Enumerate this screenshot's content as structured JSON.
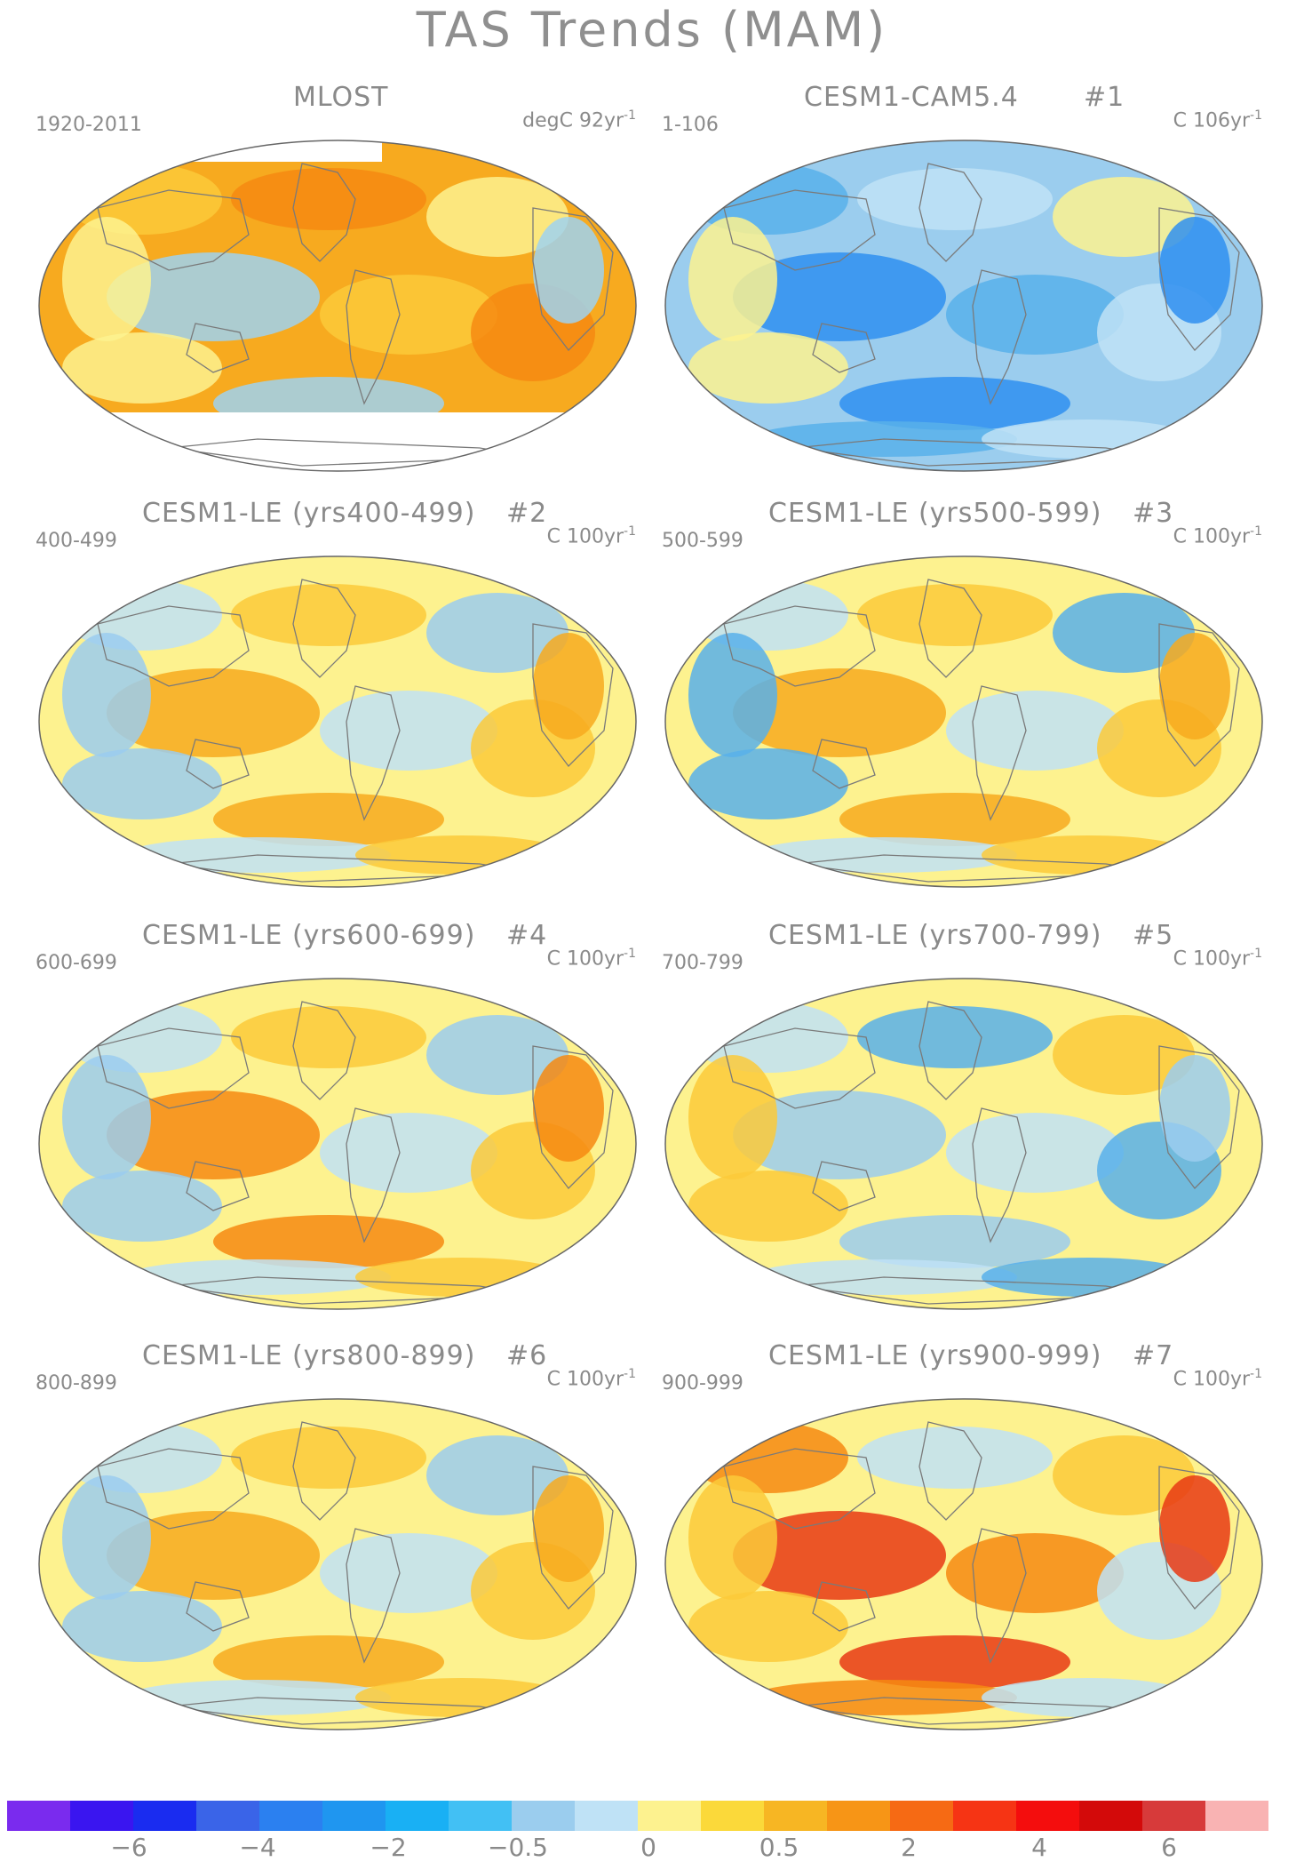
{
  "title": "TAS Trends (MAM)",
  "panels": [
    {
      "title": "MLOST",
      "number": "",
      "period": "1920-2011",
      "units_prefix": "degC 92yr",
      "units_exp": "-1",
      "fill": "#f7aa1f",
      "patches": [
        "#fbca3a",
        "#f68a12",
        "#fdf28f",
        "#9fd2f0"
      ],
      "antarctic_blank": true
    },
    {
      "title": "CESM1-CAM5.4",
      "number": "#1",
      "period": "1-106",
      "units_prefix": "C 106yr",
      "units_exp": "-1",
      "fill": "#9bcdee",
      "patches": [
        "#58b0ea",
        "#bfe2f6",
        "#fdf28f",
        "#2f8ff0"
      ],
      "antarctic_blank": false
    },
    {
      "title": "CESM1-LE (yrs400-499)",
      "number": "#2",
      "period": "400-499",
      "units_prefix": "C 100yr",
      "units_exp": "-1",
      "fill": "#fdf28f",
      "patches": [
        "#bfe2f6",
        "#fbca3a",
        "#9bcdee",
        "#f7aa1f"
      ],
      "antarctic_blank": false
    },
    {
      "title": "CESM1-LE (yrs500-599)",
      "number": "#3",
      "period": "500-599",
      "units_prefix": "C 100yr",
      "units_exp": "-1",
      "fill": "#fdf28f",
      "patches": [
        "#bfe2f6",
        "#fbca3a",
        "#58b0ea",
        "#f7aa1f"
      ],
      "antarctic_blank": false
    },
    {
      "title": "CESM1-LE (yrs600-699)",
      "number": "#4",
      "period": "600-699",
      "units_prefix": "C 100yr",
      "units_exp": "-1",
      "fill": "#fdf28f",
      "patches": [
        "#bfe2f6",
        "#fbca3a",
        "#9bcdee",
        "#f68a12"
      ],
      "antarctic_blank": false
    },
    {
      "title": "CESM1-LE (yrs700-799)",
      "number": "#5",
      "period": "700-799",
      "units_prefix": "C 100yr",
      "units_exp": "-1",
      "fill": "#fdf28f",
      "patches": [
        "#bfe2f6",
        "#58b0ea",
        "#fbca3a",
        "#9bcdee"
      ],
      "antarctic_blank": false
    },
    {
      "title": "CESM1-LE (yrs800-899)",
      "number": "#6",
      "period": "800-899",
      "units_prefix": "C 100yr",
      "units_exp": "-1",
      "fill": "#fdf28f",
      "patches": [
        "#bfe2f6",
        "#fbca3a",
        "#9bcdee",
        "#f7aa1f"
      ],
      "antarctic_blank": false
    },
    {
      "title": "CESM1-LE (yrs900-999)",
      "number": "#7",
      "period": "900-999",
      "units_prefix": "C 100yr",
      "units_exp": "-1",
      "fill": "#fdf28f",
      "patches": [
        "#f68a12",
        "#bfe2f6",
        "#fbca3a",
        "#e83a14"
      ],
      "antarctic_blank": false
    }
  ],
  "colorbar": {
    "colors": [
      "#7a2bee",
      "#3a15f0",
      "#1a2cf0",
      "#3a64e8",
      "#2b80f0",
      "#1f96f0",
      "#19b0f4",
      "#42c0f4",
      "#9bcdee",
      "#bfe2f6",
      "#fdf28f",
      "#fbd93a",
      "#f7b623",
      "#f79516",
      "#f66a14",
      "#f63414",
      "#f40d0d",
      "#d30a0a",
      "#d73a3a",
      "#f9b3b3"
    ],
    "tick_labels": [
      "−6",
      "−4",
      "−2",
      "−0.5",
      "0",
      "0.5",
      "2",
      "4",
      "6"
    ]
  }
}
